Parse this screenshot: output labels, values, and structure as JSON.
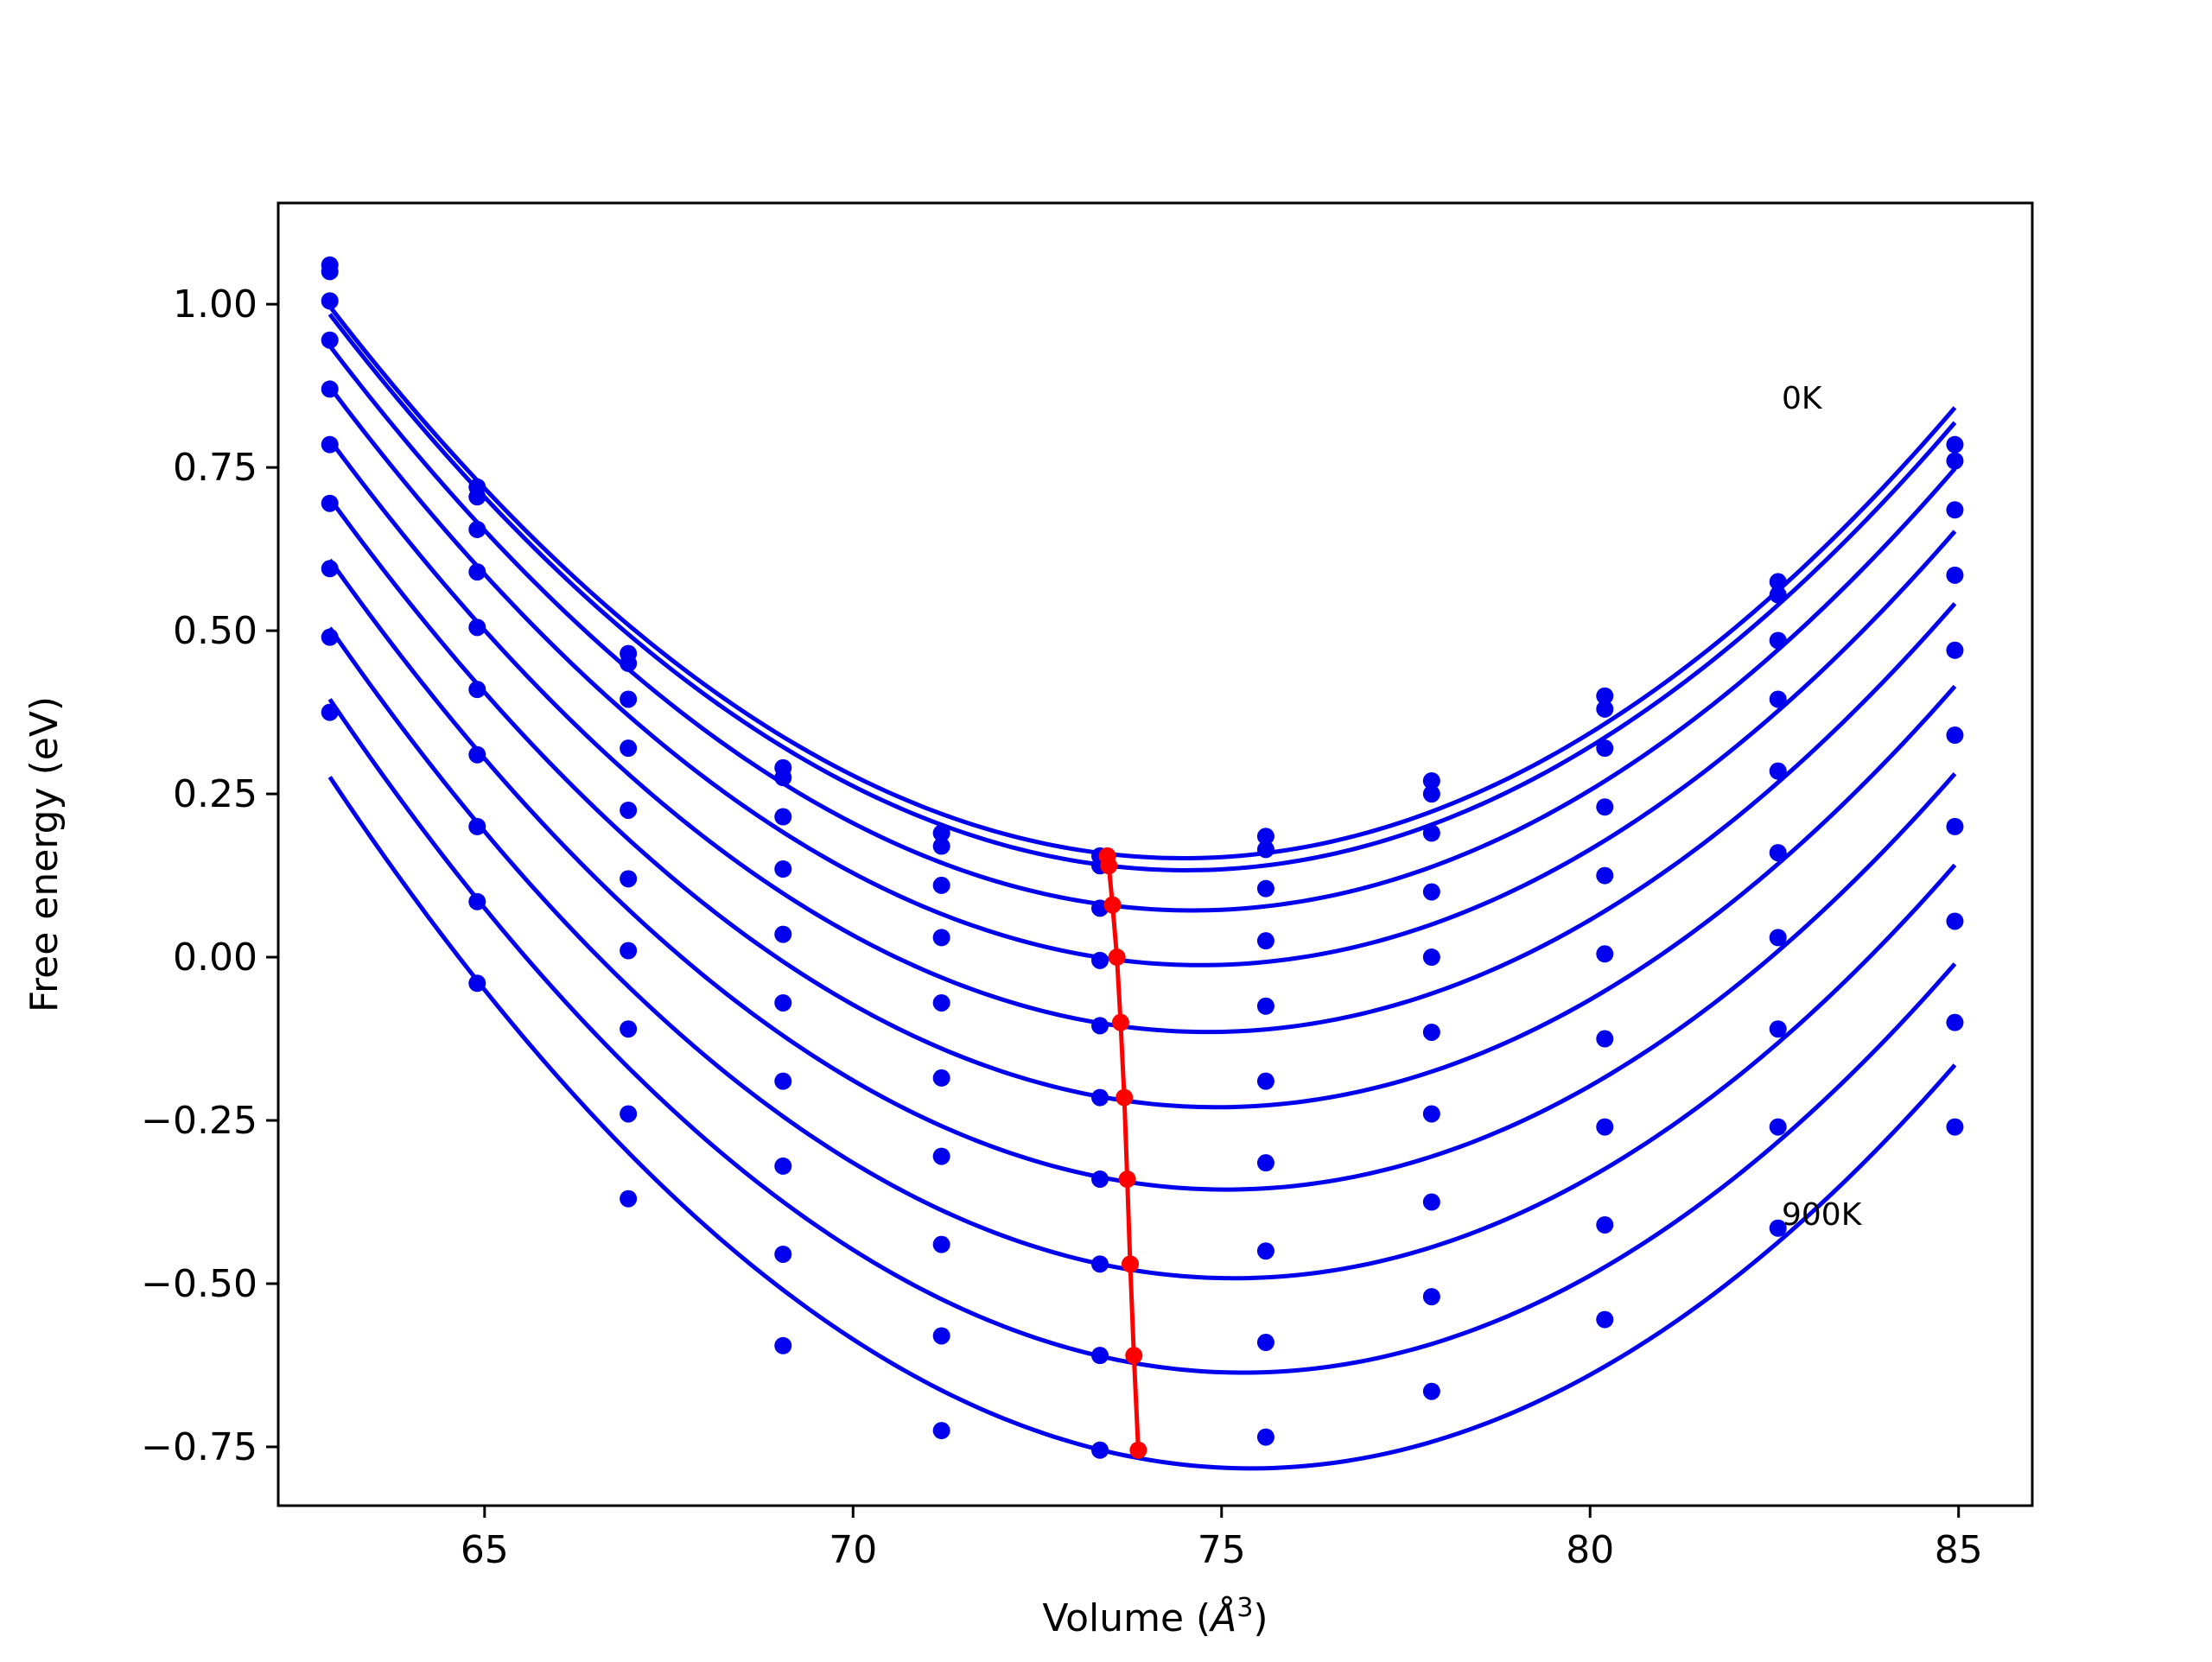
{
  "chart_data": {
    "type": "line",
    "xlabel_prefix": "Volume (",
    "xlabel_unit_base": "Å",
    "xlabel_unit_exp": "3",
    "xlabel_suffix": ")",
    "ylabel": "Free energy (eV)",
    "xlim": [
      62.2,
      86.0
    ],
    "ylim": [
      -0.84,
      1.155
    ],
    "x_ticks": [
      65,
      70,
      75,
      80,
      85
    ],
    "x_tick_labels": [
      "65",
      "70",
      "75",
      "80",
      "85"
    ],
    "y_ticks": [
      -0.75,
      -0.5,
      -0.25,
      0.0,
      0.25,
      0.5,
      0.75,
      1.0
    ],
    "y_tick_labels": [
      "−0.75",
      "−0.50",
      "−0.25",
      "0.00",
      "0.25",
      "0.50",
      "0.75",
      "1.00"
    ],
    "grid": false,
    "annotations": [
      {
        "text": "0K",
        "x": 82.6,
        "y": 0.84
      },
      {
        "text": "900K",
        "x": 82.6,
        "y": -0.41
      }
    ],
    "series_color": "#0000ee",
    "minimum_color": "#ff0000",
    "volumes": [
      62.9,
      64.9,
      66.95,
      69.05,
      71.2,
      73.35,
      75.6,
      77.85,
      80.2,
      82.55,
      84.95
    ],
    "series": [
      {
        "values": [
          1.06,
          0.72,
          0.465,
          0.29,
          0.19,
          0.155,
          0.185,
          0.27,
          0.4,
          0.575,
          0.785
        ]
      },
      {
        "values": [
          1.05,
          0.705,
          0.45,
          0.275,
          0.17,
          0.14,
          0.165,
          0.25,
          0.38,
          0.555,
          0.76
        ]
      },
      {
        "values": [
          1.005,
          0.655,
          0.395,
          0.215,
          0.11,
          0.075,
          0.105,
          0.19,
          0.32,
          0.485,
          0.685
        ]
      },
      {
        "values": [
          0.945,
          0.59,
          0.32,
          0.135,
          0.03,
          -0.005,
          0.025,
          0.1,
          0.23,
          0.395,
          0.585
        ]
      },
      {
        "values": [
          0.87,
          0.505,
          0.225,
          0.035,
          -0.07,
          -0.105,
          -0.075,
          0.0,
          0.125,
          0.285,
          0.47
        ]
      },
      {
        "values": [
          0.785,
          0.41,
          0.12,
          -0.07,
          -0.185,
          -0.215,
          -0.19,
          -0.115,
          0.005,
          0.16,
          0.34
        ]
      },
      {
        "values": [
          0.695,
          0.31,
          0.01,
          -0.19,
          -0.305,
          -0.34,
          -0.315,
          -0.24,
          -0.125,
          0.03,
          0.2
        ]
      },
      {
        "values": [
          0.595,
          0.2,
          -0.11,
          -0.32,
          -0.44,
          -0.47,
          -0.45,
          -0.375,
          -0.26,
          -0.11,
          0.055
        ]
      },
      {
        "values": [
          0.49,
          0.085,
          -0.24,
          -0.455,
          -0.58,
          -0.61,
          -0.59,
          -0.52,
          -0.41,
          -0.26,
          -0.1
        ]
      },
      {
        "values": [
          0.375,
          -0.04,
          -0.37,
          -0.595,
          -0.725,
          -0.755,
          -0.735,
          -0.665,
          -0.555,
          -0.415,
          -0.26
        ]
      }
    ],
    "minima": {
      "x": [
        73.45,
        73.47,
        73.52,
        73.58,
        73.63,
        73.68,
        73.72,
        73.76,
        73.81,
        73.87
      ],
      "y": [
        0.155,
        0.14,
        0.08,
        0.0,
        -0.1,
        -0.215,
        -0.34,
        -0.47,
        -0.61,
        -0.755
      ]
    }
  }
}
